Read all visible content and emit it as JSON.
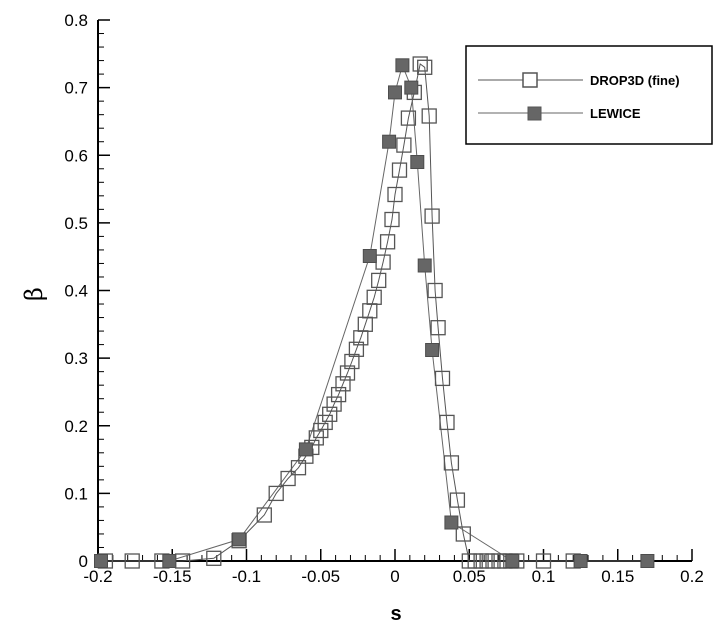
{
  "chart_data": {
    "type": "line",
    "xlabel": "s",
    "ylabel": "β",
    "xlim": [
      -0.2,
      0.2
    ],
    "ylim": [
      0,
      0.8
    ],
    "x_ticks": [
      "-0.2",
      "-0.15",
      "-0.1",
      "-0.05",
      "0",
      "0.05",
      "0.1",
      "0.15",
      "0.2"
    ],
    "y_ticks": [
      "0",
      "0.1",
      "0.2",
      "0.3",
      "0.4",
      "0.5",
      "0.6",
      "0.7",
      "0.8"
    ],
    "legend_position": "top-right",
    "grid": false,
    "series": [
      {
        "name": "DROP3D (fine)",
        "marker": "hollow-square",
        "color": "#555555",
        "x": [
          -0.195,
          -0.177,
          -0.157,
          -0.143,
          -0.122,
          -0.105,
          -0.088,
          -0.08,
          -0.072,
          -0.065,
          -0.06,
          -0.056,
          -0.053,
          -0.05,
          -0.047,
          -0.044,
          -0.041,
          -0.038,
          -0.035,
          -0.032,
          -0.029,
          -0.026,
          -0.023,
          -0.02,
          -0.017,
          -0.014,
          -0.011,
          -0.008,
          -0.005,
          -0.002,
          0.0,
          0.003,
          0.006,
          0.009,
          0.013,
          0.017,
          0.02,
          0.023,
          0.025,
          0.027,
          0.029,
          0.032,
          0.035,
          0.038,
          0.042,
          0.046,
          0.05,
          0.054,
          0.058,
          0.062,
          0.066,
          0.07,
          0.074,
          0.078,
          0.082,
          0.1,
          0.12
        ],
        "values": [
          0.0,
          0.0,
          0.0,
          0.0,
          0.004,
          0.03,
          0.068,
          0.1,
          0.122,
          0.138,
          0.155,
          0.168,
          0.182,
          0.193,
          0.205,
          0.217,
          0.232,
          0.246,
          0.262,
          0.278,
          0.295,
          0.313,
          0.33,
          0.35,
          0.37,
          0.39,
          0.415,
          0.442,
          0.472,
          0.505,
          0.542,
          0.578,
          0.615,
          0.655,
          0.693,
          0.735,
          0.73,
          0.658,
          0.51,
          0.4,
          0.345,
          0.27,
          0.205,
          0.145,
          0.09,
          0.04,
          0.0,
          0.0,
          0.0,
          0.0,
          0.0,
          0.0,
          0.0,
          0.0,
          0.0,
          0.0,
          0.0
        ]
      },
      {
        "name": "LEWICE",
        "marker": "filled-square",
        "color": "#666666",
        "x": [
          -0.198,
          -0.152,
          -0.105,
          -0.06,
          -0.017,
          -0.004,
          0.0,
          0.005,
          0.011,
          0.015,
          0.02,
          0.025,
          0.038,
          0.079,
          0.125,
          0.17
        ],
        "values": [
          0.0,
          0.0,
          0.032,
          0.165,
          0.451,
          0.62,
          0.693,
          0.733,
          0.7,
          0.59,
          0.437,
          0.312,
          0.057,
          0.0,
          0.0,
          0.0
        ]
      }
    ]
  }
}
